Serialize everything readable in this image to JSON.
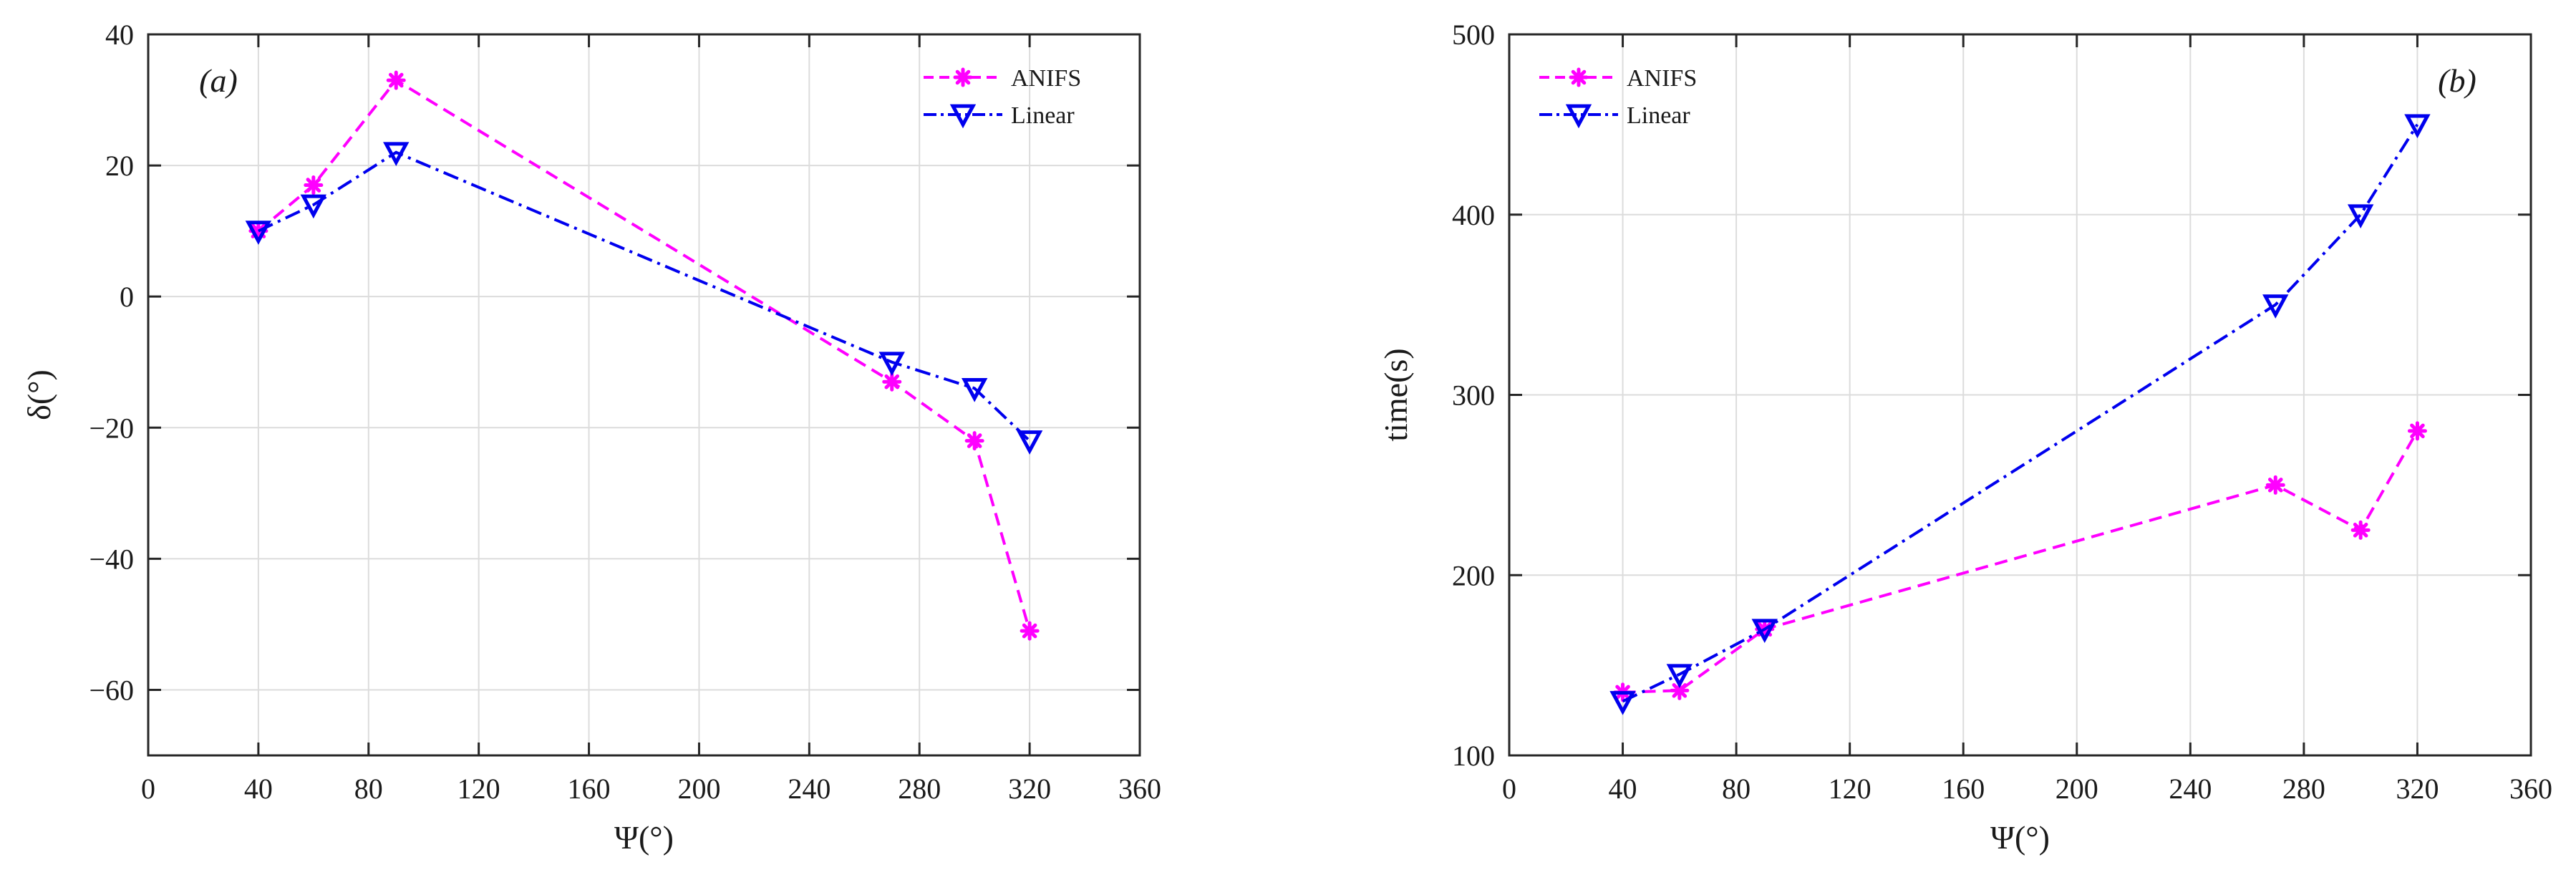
{
  "chart_data": [
    {
      "type": "line",
      "panel_label": "(a)",
      "xlabel": "Ψ(°)",
      "ylabel": "δ(°)",
      "xlim": [
        0,
        360
      ],
      "ylim": [
        -70,
        40
      ],
      "xticks": [
        0,
        40,
        80,
        120,
        160,
        200,
        240,
        280,
        320,
        360
      ],
      "xtick_labels": [
        "0",
        "40",
        "80",
        "120",
        "160",
        "200",
        "240",
        "280",
        "320",
        "360"
      ],
      "yticks": [
        -60,
        -40,
        -20,
        0,
        20,
        40
      ],
      "ytick_labels": [
        "−60",
        "−40",
        "−20",
        "0",
        "20",
        "40"
      ],
      "grid": true,
      "legend_position": "top-right",
      "series": [
        {
          "name": "ANIFS",
          "color": "#ff00ff",
          "line_style": "dashed",
          "marker": "asterisk",
          "x": [
            40,
            60,
            90,
            270,
            300,
            320
          ],
          "y": [
            10,
            17,
            33,
            -13,
            -22,
            -51
          ]
        },
        {
          "name": "Linear",
          "color": "#0000ee",
          "line_style": "dash-dot",
          "marker": "triangle-down",
          "x": [
            40,
            60,
            90,
            270,
            300,
            320
          ],
          "y": [
            10,
            14,
            22,
            -10,
            -14,
            -22
          ]
        }
      ]
    },
    {
      "type": "line",
      "panel_label": "(b)",
      "xlabel": "Ψ(°)",
      "ylabel": "time(s)",
      "xlim": [
        0,
        360
      ],
      "ylim": [
        100,
        500
      ],
      "xticks": [
        0,
        40,
        80,
        120,
        160,
        200,
        240,
        280,
        320,
        360
      ],
      "xtick_labels": [
        "0",
        "40",
        "80",
        "120",
        "160",
        "200",
        "240",
        "280",
        "320",
        "360"
      ],
      "yticks": [
        100,
        200,
        300,
        400,
        500
      ],
      "ytick_labels": [
        "100",
        "200",
        "300",
        "400",
        "500"
      ],
      "grid": true,
      "legend_position": "top-left",
      "series": [
        {
          "name": "ANIFS",
          "color": "#ff00ff",
          "line_style": "dashed",
          "marker": "asterisk",
          "x": [
            40,
            60,
            90,
            270,
            300,
            320
          ],
          "y": [
            135,
            136,
            170,
            250,
            225,
            280
          ]
        },
        {
          "name": "Linear",
          "color": "#0000ee",
          "line_style": "dash-dot",
          "marker": "triangle-down",
          "x": [
            40,
            60,
            90,
            270,
            300,
            320
          ],
          "y": [
            130,
            145,
            170,
            350,
            400,
            450
          ]
        }
      ]
    }
  ]
}
